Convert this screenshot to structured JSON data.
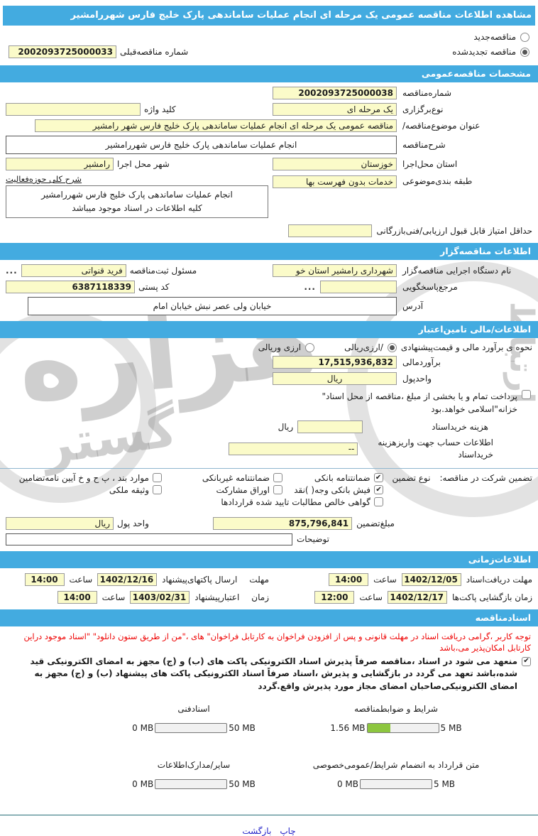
{
  "title": "مشاهده اطلاعات مناقصه عمومی یک مرحله ای انجام عملیات ساماندهی پارک خلیج فارس شهررامشیر",
  "watermark": {
    "t1": "هزاره",
    "t2": "گستر",
    "t3": "ارتباط"
  },
  "top": {
    "radio_new_label": "مناقصه‌جدید",
    "radio_new_selected": false,
    "radio_renewed_label": "مناقصه تجدیدشده",
    "radio_renewed_selected": true,
    "prev_number_label": "شماره مناقصه‌قبلی",
    "prev_number_value": "2002093725000033"
  },
  "sections": {
    "specs": "مشخصات مناقصه‌عمومی",
    "employer": "اطلاعات مناقصه‌گزار",
    "financial": "اطلاعات/مالی تامین‌اعتبار",
    "timing": "اطلاعات‌زمانی",
    "documents": "اسنادمناقصه"
  },
  "specs": {
    "number_label": "شماره‌مناقصه",
    "number_value": "2002093725000038",
    "type_label": "نوع‌برگزاری",
    "type_value": "یک مرحله ای",
    "keyword_label": "کلید واژه",
    "keyword_value": "",
    "subject_label": "عنوان موضوع‌مناقصه/",
    "subject_value": "مناقصه عمومی یک مرحله ای انجام عملیات ساماندهی پارک خلیج فارس شهر رامشیر",
    "desc_label": "شرح‌مناقصه",
    "desc_value": "انجام عملیات ساماندهی پارک خلیج فارس شهررامشیر",
    "province_label": "استان محل‌اجرا",
    "province_value": "خوزستان",
    "city_label": "شهر محل اجرا",
    "city_value": "رامشیر",
    "category_label": "طبقه بندی‌موضوعی",
    "category_value": "خدمات بدون فهرست بها",
    "activity_label": "شرح کلی حوزه‌فعالیت",
    "activity_line1": "انجام عملیات ساماندهی پارک خلیج فارس شهررامشیر",
    "activity_line2": "کلیه اطلاعات در اسناد موجود میباشد",
    "min_score_label": "حداقل امتیاز قابل قبول ارزیابی/فنی‌بازرگانی",
    "min_score_value": ""
  },
  "employer": {
    "agency_label": "نام دستگاه اجرایی مناقصه‌گزار",
    "agency_value": "شهرداری رامشیر استان خو",
    "registrar_label": "مسئول ثبت‌مناقصه",
    "registrar_value": "فرید قنواتی",
    "browse_dots": "...",
    "contact_label": "مرجع‌پاسخگویی",
    "contact_value": "",
    "postal_label": "کد پستی",
    "postal_value": "6387118339",
    "address_label": "آدرس",
    "address_value": "خیابان ولی عصر نبش خیابان امام"
  },
  "financial": {
    "method_label": "نحوه ی برآورد مالی و قیمت‌پیشنهادی",
    "radio_rial_label": "/ارزی‌ریالی",
    "radio_rial_selected": true,
    "radio_currency_label": "ارزی وریالی",
    "radio_currency_selected": false,
    "estimate_label": "برآوردمالی",
    "estimate_value": "17,515,936,832",
    "currency_label": "واحدپول",
    "currency_value": "ریال",
    "treasury_checked": false,
    "treasury_note": "پرداخت تمام و یا بخشی از مبلغ ،مناقصه از محل اسناد\" خزانه\"اسلامی خواهد.بود",
    "fee_label": "هزینه خریداسناد",
    "fee_value": "",
    "fee_unit": "ریال",
    "account_label1": "اطلاعات حساب جهت واریزهزینه",
    "account_label2": "خریداسناد",
    "account_value": "--",
    "deposit_label": "مبلغ‌تضمین",
    "deposit_value": "875,796,841",
    "unit_label": "واحد پول",
    "unit_value": "ریال",
    "notes_label": "توضیحات",
    "notes_value": ""
  },
  "guarantee": {
    "title": "تضمین شرکت در مناقصه:",
    "type_label": "نوع  تضمین",
    "items": [
      {
        "label": "ضمانتنامه بانکی",
        "checked": true
      },
      {
        "label": "ضمانتنامه غیربانکی",
        "checked": false
      },
      {
        "label": "موارد بند ، پ ح و خ آیین نامه‌تضامین",
        "checked": false
      },
      {
        "label": "فیش  بانکی وجه( )نقد",
        "checked": true
      },
      {
        "label": "اوراق  مشارکت",
        "checked": false
      },
      {
        "label": "وثیقه ملکی",
        "checked": false
      },
      {
        "label": "گواهی  خالص مطالبات تایید شده قراردادها",
        "checked": false
      }
    ]
  },
  "timing": {
    "rows": [
      {
        "l1": "مهلت دریافت‌اسناد",
        "l2": "",
        "date": "1402/12/05",
        "hour": "ساعت",
        "time": "14:00"
      },
      {
        "l1": "مهلت",
        "l2": "ارسال پاکتهای‌پیشنهاد",
        "date": "1402/12/16",
        "hour": "ساعت",
        "time": "14:00"
      },
      {
        "l1": "زمان بازگشایی پاکت‌ها",
        "l2": "",
        "date": "1402/12/17",
        "hour": "ساعت",
        "time": "12:00"
      },
      {
        "l1": "زمان",
        "l2": "اعتبارپیشنهاد",
        "date": "1403/02/31",
        "hour": "ساعت",
        "time": "14:00"
      }
    ]
  },
  "docs": {
    "notice": "توجه کاربر ،گرامی دریافت اسناد در مهلت قانونی و پس از افزودن فراخوان به کارتابل فراخوان\" های ،\"من از طریق ستون دانلود\" \"اسناد موجود دراین کارتابل امکان‌پذیر می،باشد",
    "commitment_checked": true,
    "commitment": "منعهد می شود در اسناد ،مناقصه صرفاً پذیرش اسناد الکترونیکی پاکت های (ب) و (ج) مجهز به امضای الکترونیکی قید شده،باشد تعهد می گردد در بازگشایی و پذیرش ،اسناد صرفاً اسناد الکترونیکی پاکت های پیشنهاد (ب) و (ج) مجهز به امضای الکترونیکی‌صاحبان امضای مجاز مورد پذیرش واقع.گردد",
    "uploads": [
      {
        "label": "شرایط و ضوابطمناقصه",
        "current": "1.56 MB",
        "max": "5 MB",
        "percent": 32
      },
      {
        "label": "اسنادفنی",
        "current": "0 MB",
        "max": "50 MB",
        "percent": 0
      },
      {
        "label": "متن قرارداد به انضمام شرایط/عمومی‌خصوصی",
        "current": "0 MB",
        "max": "5 MB",
        "percent": 0
      },
      {
        "label": "سایر/مدارک‌اطلاعات",
        "current": "0 MB",
        "max": "50 MB",
        "percent": 0
      }
    ]
  },
  "footer": {
    "print": "چاپ",
    "back": "بازگشت"
  },
  "colors": {
    "header_blue": "#43abe0",
    "field_yellow": "#fbfbc9",
    "progress_green": "#8dc63f",
    "notice_red": "#ee0000",
    "link_blue": "#2323c8"
  }
}
